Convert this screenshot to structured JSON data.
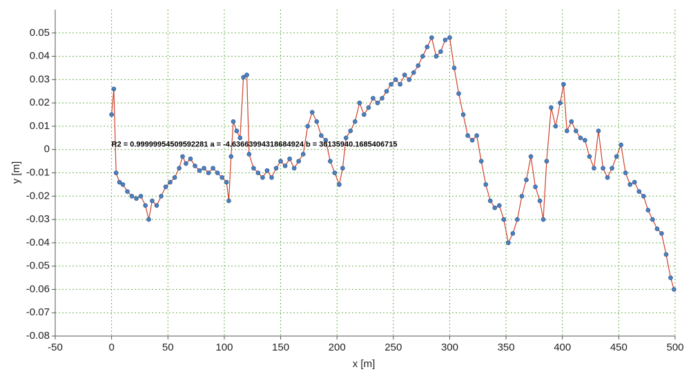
{
  "chart_data": {
    "type": "line",
    "x_label": "x [m]",
    "y_label": "y [m]",
    "annotation": "R2 =  0.99999954509592281  a = -4.63663994318684924  b =  36135940.1685406715",
    "xlim": [
      -50,
      500
    ],
    "xticks": [
      -50,
      0,
      50,
      100,
      150,
      200,
      250,
      300,
      350,
      400,
      450,
      500
    ],
    "ylim": [
      -0.08,
      0.06
    ],
    "yticks": [
      -0.08,
      -0.07,
      -0.06,
      -0.05,
      -0.04,
      -0.03,
      -0.02,
      -0.01,
      0,
      0.01,
      0.02,
      0.03,
      0.04,
      0.05
    ],
    "grid": true,
    "line_color": "#d0402a",
    "marker_color": "#4a7fc0",
    "x": [
      0,
      2,
      4,
      7,
      10,
      14,
      18,
      22,
      26,
      30,
      33,
      36,
      40,
      44,
      48,
      52,
      56,
      60,
      63,
      66,
      70,
      74,
      78,
      82,
      86,
      90,
      94,
      98,
      102,
      104,
      106,
      108,
      111,
      114,
      117,
      120,
      122,
      126,
      130,
      134,
      138,
      142,
      146,
      150,
      154,
      158,
      162,
      166,
      170,
      174,
      178,
      182,
      186,
      190,
      194,
      198,
      202,
      205,
      208,
      212,
      216,
      220,
      224,
      228,
      232,
      236,
      240,
      244,
      248,
      252,
      256,
      260,
      264,
      268,
      272,
      276,
      280,
      284,
      288,
      292,
      296,
      300,
      304,
      308,
      312,
      316,
      320,
      324,
      328,
      332,
      336,
      340,
      344,
      348,
      352,
      356,
      360,
      364,
      368,
      372,
      376,
      380,
      383,
      386,
      390,
      394,
      398,
      401,
      404,
      408,
      412,
      416,
      420,
      424,
      428,
      432,
      436,
      440,
      444,
      448,
      452,
      456,
      460,
      464,
      468,
      472,
      476,
      480,
      484,
      488,
      492,
      496,
      499
    ],
    "values": [
      0.015,
      0.026,
      -0.01,
      -0.014,
      -0.015,
      -0.018,
      -0.02,
      -0.021,
      -0.02,
      -0.024,
      -0.03,
      -0.022,
      -0.024,
      -0.02,
      -0.016,
      -0.014,
      -0.012,
      -0.008,
      -0.003,
      -0.006,
      -0.004,
      -0.007,
      -0.009,
      -0.008,
      -0.01,
      -0.008,
      -0.01,
      -0.012,
      -0.014,
      -0.022,
      -0.003,
      0.012,
      0.008,
      0.005,
      0.031,
      0.032,
      -0.002,
      -0.008,
      -0.01,
      -0.012,
      -0.009,
      -0.012,
      -0.008,
      -0.005,
      -0.007,
      -0.004,
      -0.008,
      -0.005,
      -0.002,
      0.01,
      0.016,
      0.012,
      0.006,
      0.004,
      -0.005,
      -0.01,
      -0.015,
      -0.008,
      0.005,
      0.008,
      0.012,
      0.02,
      0.015,
      0.018,
      0.022,
      0.02,
      0.022,
      0.025,
      0.028,
      0.03,
      0.028,
      0.032,
      0.03,
      0.033,
      0.036,
      0.04,
      0.044,
      0.048,
      0.04,
      0.042,
      0.047,
      0.048,
      0.035,
      0.024,
      0.015,
      0.006,
      0.004,
      0.006,
      -0.005,
      -0.015,
      -0.022,
      -0.025,
      -0.024,
      -0.03,
      -0.04,
      -0.036,
      -0.03,
      -0.02,
      -0.013,
      -0.003,
      -0.016,
      -0.022,
      -0.03,
      -0.005,
      0.018,
      0.01,
      0.02,
      0.028,
      0.008,
      0.012,
      0.008,
      0.005,
      0.004,
      -0.003,
      -0.008,
      0.008,
      -0.008,
      -0.012,
      -0.008,
      -0.003,
      0.002,
      -0.01,
      -0.015,
      -0.014,
      -0.018,
      -0.02,
      -0.026,
      -0.03,
      -0.034,
      -0.036,
      -0.045,
      -0.055,
      -0.06
    ]
  }
}
